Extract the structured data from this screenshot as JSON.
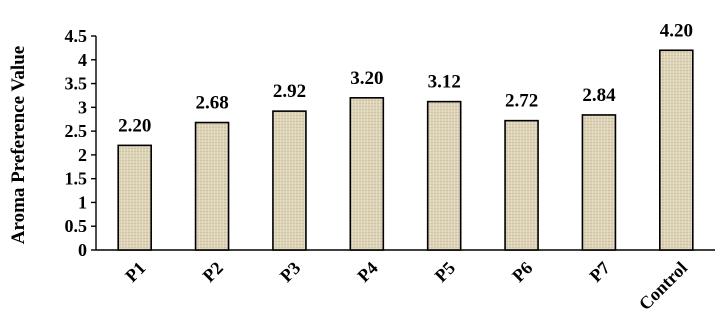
{
  "chart_data": {
    "type": "bar",
    "title": "",
    "xlabel": "",
    "ylabel": "Aroma Preference Value",
    "categories": [
      "P1",
      "P2",
      "P3",
      "P4",
      "P5",
      "P6",
      "P7",
      "Control"
    ],
    "values": [
      2.2,
      2.68,
      2.92,
      3.2,
      3.12,
      2.72,
      2.84,
      4.2
    ],
    "data_labels": [
      "2.20",
      "2.68",
      "2.92",
      "3.20",
      "3.12",
      "2.72",
      "2.84",
      "4.20"
    ],
    "y_ticks": [
      "0",
      "0.5",
      "1",
      "1.5",
      "2",
      "2.5",
      "3",
      "3.5",
      "4",
      "4.5"
    ],
    "ylim": [
      0,
      4.5
    ],
    "grid": false,
    "legend": "none",
    "bar_color": "#ddd4b8",
    "bar_outline": "#000000"
  }
}
